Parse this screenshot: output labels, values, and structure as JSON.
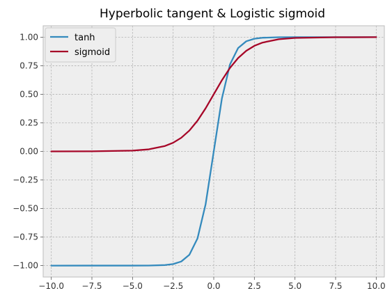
{
  "chart_data": {
    "type": "line",
    "title": "Hyperbolic tangent & Logistic sigmoid",
    "xlabel": "",
    "ylabel": "",
    "xlim": [
      -10.5,
      10.5
    ],
    "ylim": [
      -1.1,
      1.1
    ],
    "x_ticks": [
      -10.0,
      -7.5,
      -5.0,
      -2.5,
      0.0,
      2.5,
      5.0,
      7.5,
      10.0
    ],
    "x_tick_labels": [
      "−10.0",
      "−7.5",
      "−5.0",
      "−2.5",
      "0.0",
      "2.5",
      "5.0",
      "7.5",
      "10.0"
    ],
    "y_ticks": [
      1.0,
      0.75,
      0.5,
      0.25,
      0.0,
      -0.25,
      -0.5,
      -0.75,
      -1.0
    ],
    "y_tick_labels": [
      "1.00",
      "0.75",
      "0.50",
      "0.25",
      "0.00",
      "−0.25",
      "−0.50",
      "−0.75",
      "−1.00"
    ],
    "grid": true,
    "legend_position": "top-left",
    "series": [
      {
        "name": "tanh",
        "color": "#348abd",
        "x": [
          -10,
          -5,
          -4,
          -3,
          -2.5,
          -2,
          -1.5,
          -1,
          -0.5,
          0,
          0.5,
          1,
          1.5,
          2,
          2.5,
          3,
          4,
          5,
          10
        ],
        "y": [
          -1.0,
          -0.9999,
          -0.9993,
          -0.9951,
          -0.9866,
          -0.964,
          -0.9051,
          -0.7616,
          -0.4621,
          0.0,
          0.4621,
          0.7616,
          0.9051,
          0.964,
          0.9866,
          0.9951,
          0.9993,
          0.9999,
          1.0
        ]
      },
      {
        "name": "sigmoid",
        "color": "#a60628",
        "x": [
          -10,
          -7.5,
          -5,
          -4,
          -3,
          -2.5,
          -2,
          -1.5,
          -1,
          -0.5,
          0,
          0.5,
          1,
          1.5,
          2,
          2.5,
          3,
          4,
          5,
          7.5,
          10
        ],
        "y": [
          0.0,
          0.0006,
          0.0067,
          0.018,
          0.0474,
          0.0759,
          0.1192,
          0.1824,
          0.2689,
          0.3775,
          0.5,
          0.6225,
          0.7311,
          0.8176,
          0.8808,
          0.9241,
          0.9526,
          0.982,
          0.9933,
          0.9994,
          1.0
        ]
      }
    ]
  },
  "colors": {
    "plot_background": "#eeeeee",
    "grid": "#b2b2b2",
    "frame": "#bcbcbc"
  }
}
